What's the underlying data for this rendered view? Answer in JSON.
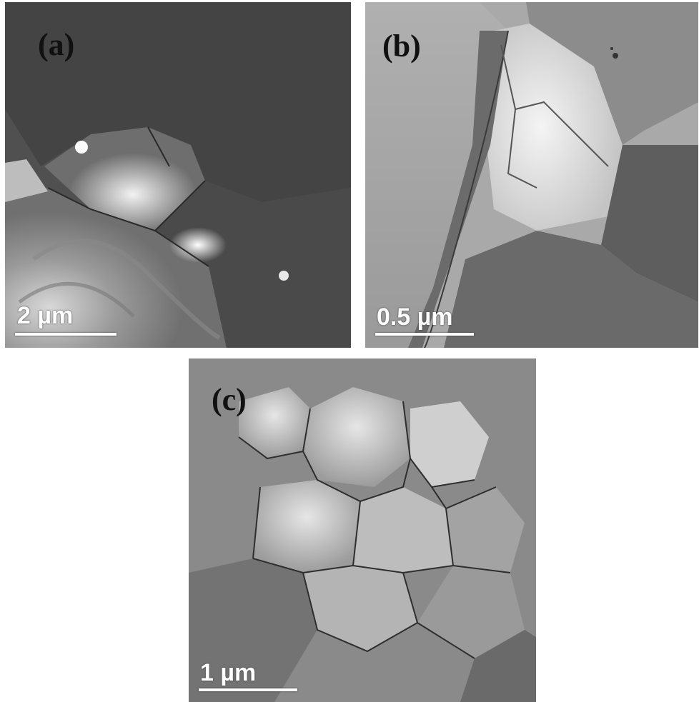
{
  "panels": [
    {
      "label": "(a)",
      "scale_bar": "2 µm"
    },
    {
      "label": "(b)",
      "scale_bar": "0.5 µm"
    },
    {
      "label": "(c)",
      "scale_bar": "1 µm"
    }
  ],
  "colors": {
    "background": "#ffffff",
    "label": "#111111",
    "scale_bar": "#ffffff"
  }
}
